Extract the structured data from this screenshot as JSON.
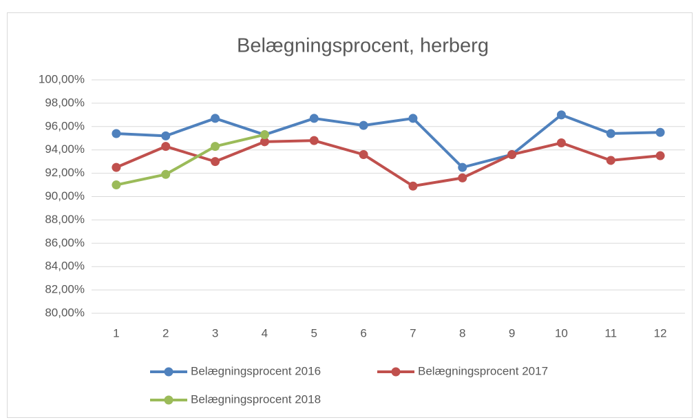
{
  "chart_data": {
    "type": "line",
    "title": "Belægningsprocent, herberg",
    "categories": [
      "1",
      "2",
      "3",
      "4",
      "5",
      "6",
      "7",
      "8",
      "9",
      "10",
      "11",
      "12"
    ],
    "series": [
      {
        "name": "Belægningsprocent 2016",
        "color": "#4f81bd",
        "values": [
          95.4,
          95.2,
          96.7,
          95.3,
          96.7,
          96.1,
          96.7,
          92.5,
          93.6,
          97.0,
          95.4,
          95.5
        ]
      },
      {
        "name": "Belægningsprocent 2017",
        "color": "#c0504d",
        "values": [
          92.5,
          94.3,
          93.0,
          94.7,
          94.8,
          93.6,
          90.9,
          91.6,
          93.6,
          94.6,
          93.1,
          93.5
        ]
      },
      {
        "name": "Belægningsprocent 2018",
        "color": "#9bbb59",
        "values": [
          91.0,
          91.9,
          94.3,
          95.3,
          null,
          null,
          null,
          null,
          null,
          null,
          null,
          null
        ]
      }
    ],
    "ylim": [
      80,
      100
    ],
    "yticks": [
      {
        "value": 80,
        "label": "80,00%"
      },
      {
        "value": 82,
        "label": "82,00%"
      },
      {
        "value": 84,
        "label": "84,00%"
      },
      {
        "value": 86,
        "label": "86,00%"
      },
      {
        "value": 88,
        "label": "88,00%"
      },
      {
        "value": 90,
        "label": "90,00%"
      },
      {
        "value": 92,
        "label": "92,00%"
      },
      {
        "value": 94,
        "label": "94,00%"
      },
      {
        "value": 96,
        "label": "96,00%"
      },
      {
        "value": 98,
        "label": "98,00%"
      },
      {
        "value": 100,
        "label": "100,00%"
      }
    ],
    "grid": true,
    "legend": "bottom"
  }
}
